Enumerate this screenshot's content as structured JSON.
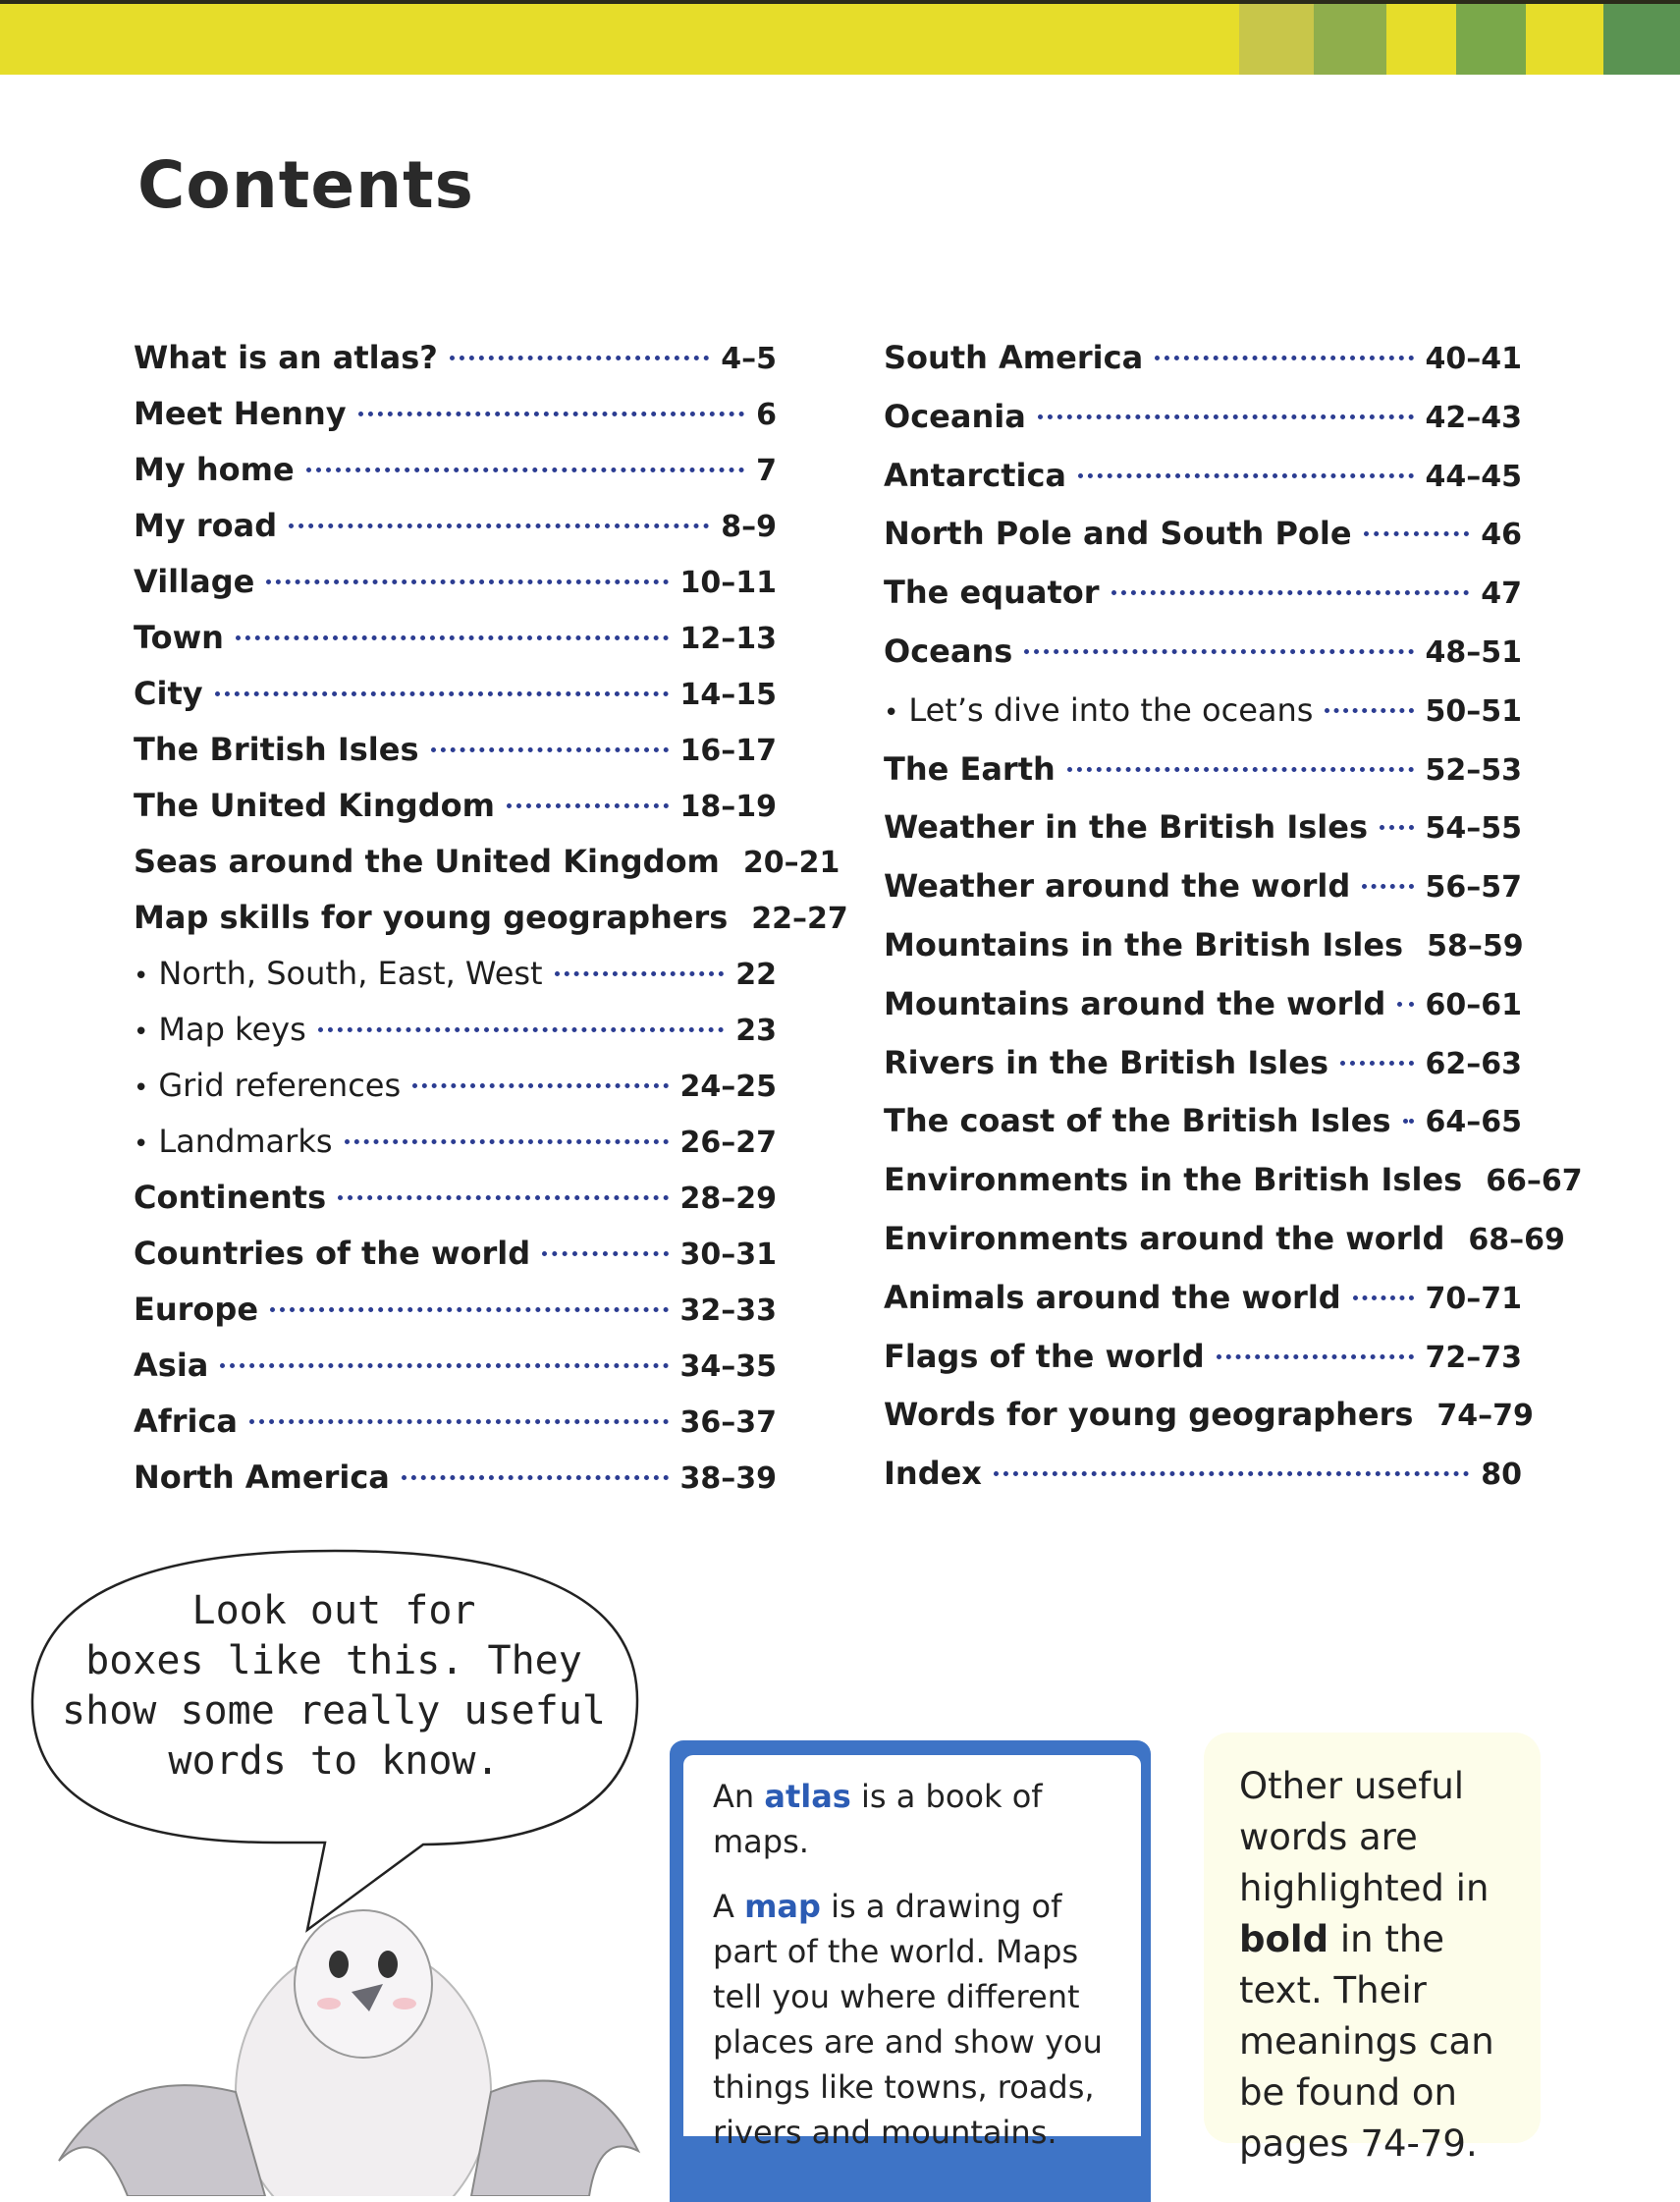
{
  "colors": {
    "top_bar": "#e6dd2a",
    "stripes": [
      "#c8c64a",
      "#8fae4c",
      "#e6dd2a",
      "#7aa84a",
      "#e6dd2a",
      "#5a9352"
    ],
    "leader_dots": "#2c3d92",
    "highlight": "#2c5cb4",
    "blue_box": "#3e74c6",
    "yellow_box": "#fdfdea"
  },
  "title": "Contents",
  "left_column": [
    {
      "label": "What is an atlas?",
      "page": "4–5"
    },
    {
      "label": "Meet Henny",
      "page": "6"
    },
    {
      "label": "My home",
      "page": "7"
    },
    {
      "label": "My road",
      "page": "8–9"
    },
    {
      "label": "Village",
      "page": "10–11"
    },
    {
      "label": "Town",
      "page": "12–13"
    },
    {
      "label": "City",
      "page": "14–15"
    },
    {
      "label": "The British Isles",
      "page": "16–17"
    },
    {
      "label": "The United Kingdom",
      "page": "18–19"
    },
    {
      "label": "Seas around the United Kingdom",
      "page": "20–21"
    },
    {
      "label": "Map skills for young geographers",
      "page": "22–27"
    },
    {
      "label": "North, South, East, West",
      "page": "22",
      "sub": true
    },
    {
      "label": "Map keys",
      "page": "23",
      "sub": true
    },
    {
      "label": "Grid references",
      "page": "24–25",
      "sub": true
    },
    {
      "label": "Landmarks",
      "page": "26–27",
      "sub": true
    },
    {
      "label": "Continents",
      "page": "28–29"
    },
    {
      "label": "Countries of the world",
      "page": "30–31"
    },
    {
      "label": "Europe",
      "page": "32–33"
    },
    {
      "label": "Asia",
      "page": "34–35"
    },
    {
      "label": "Africa",
      "page": "36–37"
    },
    {
      "label": "North America",
      "page": "38–39"
    }
  ],
  "right_column": [
    {
      "label": "South America",
      "page": "40–41"
    },
    {
      "label": "Oceania",
      "page": "42–43"
    },
    {
      "label": "Antarctica",
      "page": "44–45"
    },
    {
      "label": "North Pole and South Pole",
      "page": "46"
    },
    {
      "label": "The equator",
      "page": "47"
    },
    {
      "label": "Oceans",
      "page": "48–51"
    },
    {
      "label": "Let’s dive into the oceans",
      "page": "50–51",
      "sub": true
    },
    {
      "label": "The Earth",
      "page": "52–53"
    },
    {
      "label": "Weather in the British Isles",
      "page": "54–55"
    },
    {
      "label": "Weather around the world",
      "page": "56–57"
    },
    {
      "label": "Mountains in the British Isles",
      "page": "58–59"
    },
    {
      "label": "Mountains around the world",
      "page": "60–61"
    },
    {
      "label": "Rivers in the British Isles",
      "page": "62–63"
    },
    {
      "label": "The coast of the British Isles",
      "page": "64–65"
    },
    {
      "label": "Environments in the British Isles",
      "page": "66–67"
    },
    {
      "label": "Environments around the world",
      "page": "68–69"
    },
    {
      "label": "Animals around the world",
      "page": "70–71"
    },
    {
      "label": "Flags of the world",
      "page": "72–73"
    },
    {
      "label": "Words for young geographers",
      "page": "74–79"
    },
    {
      "label": "Index",
      "page": "80"
    }
  ],
  "bullet_symbol": "•",
  "speech_bubble": {
    "lines": [
      "Look out for",
      "boxes like this. They",
      "show some really useful",
      "words to know."
    ]
  },
  "word_box": {
    "p1_pre": "An ",
    "p1_word": "atlas",
    "p1_post": " is a book of maps.",
    "p2_pre": "A ",
    "p2_word": "map",
    "p2_post": " is a drawing of part of the world. Maps tell you where different places are and show you things like towns, roads, rivers and mountains."
  },
  "note_box": {
    "pre": "Other useful words are highlighted in ",
    "bold": "bold",
    "post": " in the text. Their meanings can be found on pages 74-79."
  }
}
